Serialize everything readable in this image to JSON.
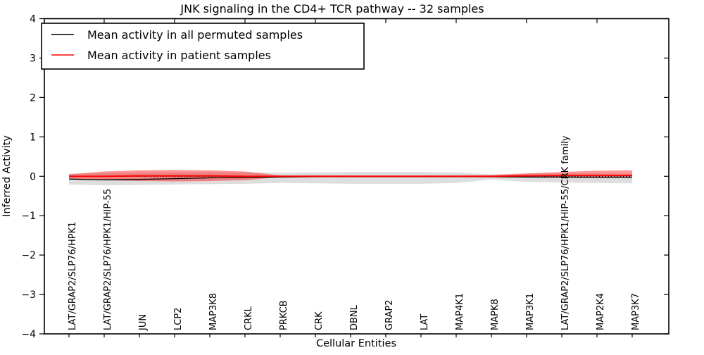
{
  "chart_data": {
    "type": "line",
    "title": "JNK signaling in the CD4+ TCR pathway -- 32 samples",
    "xlabel": "Cellular Entities",
    "ylabel": "Inferred Activity",
    "ylim": [
      -4,
      4
    ],
    "yticks": [
      -4,
      -3,
      -2,
      -1,
      0,
      1,
      2,
      3,
      4
    ],
    "grid": false,
    "legend_position": "upper left",
    "zero_reference_line": {
      "y": 0,
      "style": "dotted",
      "color": "#000000"
    },
    "categories": [
      "LAT/GRAP2/SLP76/HPK1",
      "LAT/GRAP2/SLP76/HPK1/HIP-55",
      "JUN",
      "LCP2",
      "MAP3K8",
      "CRKL",
      "PRKCB",
      "CRK",
      "DBNL",
      "GRAP2",
      "LAT",
      "MAP4K1",
      "MAPK8",
      "MAP3K1",
      "LAT/GRAP2/SLP76/HPK1/HIP-55/CRK family",
      "MAP2K4",
      "MAP3K7"
    ],
    "series": [
      {
        "name": "Mean activity in all permuted samples",
        "color": "#000000",
        "values": [
          -0.07,
          -0.09,
          -0.08,
          -0.06,
          -0.04,
          -0.03,
          -0.02,
          -0.01,
          -0.01,
          -0.01,
          -0.01,
          -0.01,
          -0.01,
          -0.02,
          -0.02,
          -0.03,
          -0.03
        ],
        "band": {
          "low": [
            -0.21,
            -0.23,
            -0.22,
            -0.21,
            -0.2,
            -0.19,
            -0.17,
            -0.18,
            -0.19,
            -0.19,
            -0.19,
            -0.17,
            -0.08,
            -0.14,
            -0.16,
            -0.17,
            -0.18
          ],
          "high": [
            0.07,
            0.08,
            0.09,
            0.1,
            0.1,
            0.1,
            0.09,
            0.1,
            0.11,
            0.11,
            0.11,
            0.1,
            0.05,
            0.07,
            0.07,
            0.07,
            0.06
          ],
          "color": "rgba(0,0,0,0.13)"
        }
      },
      {
        "name": "Mean activity in patient samples",
        "color": "#ff0000",
        "values": [
          0.0,
          0.0,
          0.01,
          0.01,
          0.01,
          0.0,
          0.0,
          0.0,
          0.0,
          0.0,
          0.0,
          0.0,
          0.0,
          0.01,
          0.02,
          0.02,
          0.02
        ],
        "band": {
          "low": [
            -0.05,
            -0.1,
            -0.12,
            -0.13,
            -0.12,
            -0.1,
            -0.02,
            -0.02,
            -0.02,
            -0.02,
            -0.02,
            -0.02,
            -0.03,
            -0.03,
            -0.04,
            -0.04,
            -0.04
          ],
          "high": [
            0.05,
            0.12,
            0.15,
            0.16,
            0.15,
            0.12,
            0.02,
            0.02,
            0.02,
            0.02,
            0.02,
            0.02,
            0.03,
            0.07,
            0.11,
            0.14,
            0.15
          ],
          "color": "rgba(255,0,0,0.42)"
        }
      }
    ],
    "top_xtick_indices": [
      1,
      3,
      5,
      7,
      9,
      11,
      13,
      15
    ]
  },
  "legend": {
    "items": [
      {
        "label": "Mean activity in all permuted samples",
        "color": "#000000"
      },
      {
        "label": "Mean activity in patient samples",
        "color": "#ff0000"
      }
    ]
  }
}
